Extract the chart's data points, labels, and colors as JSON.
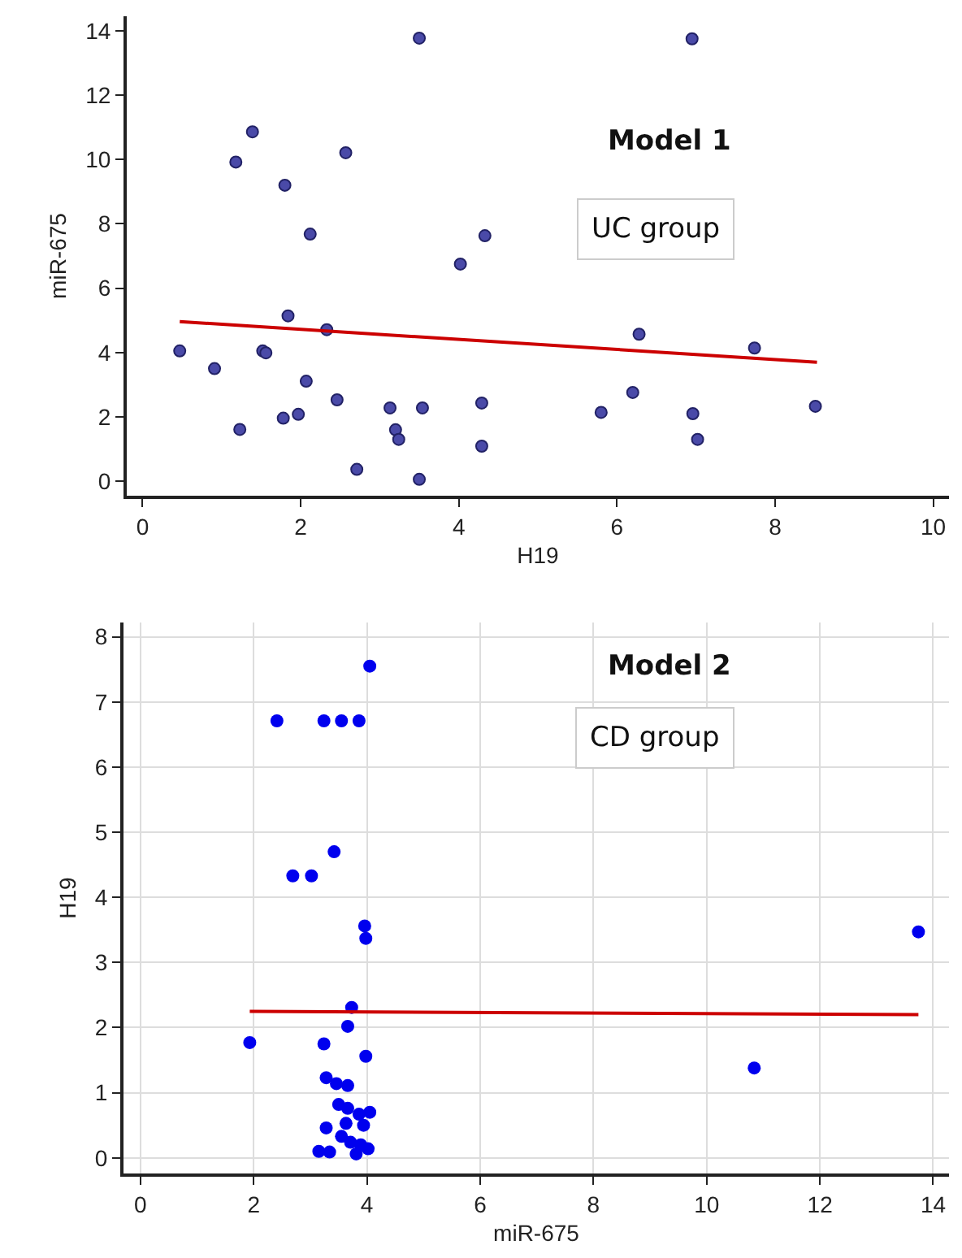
{
  "chart_data": [
    {
      "type": "scatter",
      "xlabel": "H19",
      "ylabel": "miR-675",
      "xlim": [
        -0.2,
        10.2
      ],
      "ylim": [
        -0.45,
        14.45
      ],
      "xticks": [
        0,
        2,
        4,
        6,
        8,
        10
      ],
      "yticks": [
        0,
        2,
        4,
        6,
        8,
        10,
        12,
        14
      ],
      "grid": false,
      "annotations": [
        "Model 1",
        "UC group"
      ],
      "series": [
        {
          "marker": "circle",
          "color": "#4a4aa8",
          "x": [
            0.47,
            0.91,
            1.18,
            1.23,
            1.39,
            1.52,
            1.56,
            1.8,
            1.78,
            1.84,
            1.97,
            2.07,
            2.12,
            2.33,
            2.46,
            2.57,
            2.71,
            3.13,
            3.2,
            3.24,
            3.5,
            3.5,
            3.54,
            4.02,
            4.29,
            4.29,
            4.33,
            5.8,
            6.2,
            6.28,
            6.95,
            6.96,
            7.02,
            7.74,
            8.51
          ],
          "values": [
            4.05,
            3.5,
            9.92,
            1.61,
            10.86,
            4.05,
            3.99,
            9.2,
            1.96,
            5.14,
            2.08,
            3.11,
            7.68,
            4.71,
            2.53,
            10.21,
            0.37,
            2.28,
            1.6,
            1.3,
            13.77,
            0.06,
            2.28,
            6.75,
            2.43,
            1.09,
            7.63,
            2.14,
            2.76,
            4.57,
            13.75,
            2.1,
            1.3,
            4.14,
            2.33
          ]
        },
        {
          "type": "line",
          "marker": "none",
          "color": "#cc0000",
          "x": [
            0.47,
            8.53
          ],
          "values": [
            4.96,
            3.7
          ]
        }
      ]
    },
    {
      "type": "scatter",
      "xlabel": "miR-675",
      "ylabel": "H19",
      "xlim": [
        -0.3,
        14.28
      ],
      "ylim": [
        -0.24,
        8.22
      ],
      "xticks": [
        0,
        2,
        4,
        6,
        8,
        10,
        12,
        14
      ],
      "yticks": [
        0,
        1,
        2,
        3,
        4,
        5,
        6,
        7,
        8
      ],
      "grid": true,
      "annotations": [
        "Model 2",
        "CD group"
      ],
      "series": [
        {
          "marker": "circle",
          "color": "#0000ee",
          "x": [
            4.05,
            2.41,
            3.24,
            3.55,
            3.86,
            3.42,
            2.69,
            3.02,
            3.96,
            3.98,
            13.74,
            3.73,
            3.66,
            1.93,
            3.24,
            3.98,
            10.84,
            3.28,
            3.46,
            3.66,
            3.5,
            3.66,
            3.86,
            4.05,
            3.28,
            3.63,
            3.94,
            3.55,
            3.71,
            3.89,
            4.02,
            3.15,
            3.34,
            3.81
          ],
          "values": [
            7.55,
            6.71,
            6.71,
            6.71,
            6.71,
            4.7,
            4.33,
            4.33,
            3.56,
            3.37,
            3.47,
            2.31,
            2.02,
            1.77,
            1.75,
            1.56,
            1.38,
            1.23,
            1.14,
            1.11,
            0.82,
            0.76,
            0.67,
            0.7,
            0.46,
            0.53,
            0.5,
            0.33,
            0.24,
            0.2,
            0.14,
            0.1,
            0.09,
            0.06
          ]
        },
        {
          "type": "line",
          "marker": "none",
          "color": "#cc0000",
          "x": [
            1.93,
            13.74
          ],
          "values": [
            2.25,
            2.2
          ]
        }
      ]
    }
  ]
}
